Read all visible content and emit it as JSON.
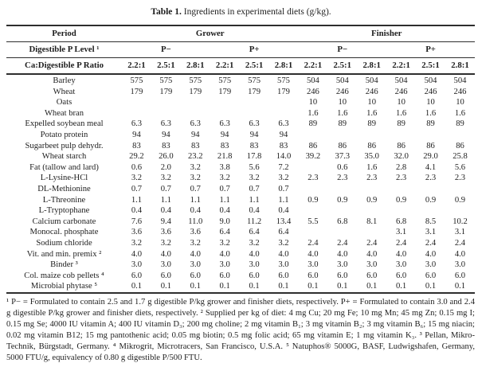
{
  "caption": {
    "label": "Table 1.",
    "text": "Ingredients in experimental diets (g/kg)."
  },
  "table": {
    "corner_labels": {
      "period": "Period",
      "p_level": "Digestible P Level ¹",
      "ratio": "Ca:Digestible P Ratio"
    },
    "period_groups": [
      "Grower",
      "Finisher"
    ],
    "p_level_groups": [
      "P−",
      "P+",
      "P−",
      "P+"
    ],
    "ratio_columns": [
      "2.2:1",
      "2.5:1",
      "2.8:1",
      "2.2:1",
      "2.5:1",
      "2.8:1",
      "2.2:1",
      "2.5:1",
      "2.8:1",
      "2.2:1",
      "2.5:1",
      "2.8:1"
    ],
    "rows": [
      {
        "label": "Barley",
        "values": [
          "575",
          "575",
          "575",
          "575",
          "575",
          "575",
          "504",
          "504",
          "504",
          "504",
          "504",
          "504"
        ]
      },
      {
        "label": "Wheat",
        "values": [
          "179",
          "179",
          "179",
          "179",
          "179",
          "179",
          "246",
          "246",
          "246",
          "246",
          "246",
          "246"
        ]
      },
      {
        "label": "Oats",
        "values": [
          "",
          "",
          "",
          "",
          "",
          "",
          "10",
          "10",
          "10",
          "10",
          "10",
          "10"
        ]
      },
      {
        "label": "Wheat bran",
        "values": [
          "",
          "",
          "",
          "",
          "",
          "",
          "1.6",
          "1.6",
          "1.6",
          "1.6",
          "1.6",
          "1.6"
        ]
      },
      {
        "label": "Expelled soybean meal",
        "values": [
          "6.3",
          "6.3",
          "6.3",
          "6.3",
          "6.3",
          "6.3",
          "89",
          "89",
          "89",
          "89",
          "89",
          "89"
        ]
      },
      {
        "label": "Potato protein",
        "values": [
          "94",
          "94",
          "94",
          "94",
          "94",
          "94",
          "",
          "",
          "",
          "",
          "",
          ""
        ]
      },
      {
        "label": "Sugarbeet pulp dehydr.",
        "values": [
          "83",
          "83",
          "83",
          "83",
          "83",
          "83",
          "86",
          "86",
          "86",
          "86",
          "86",
          "86"
        ]
      },
      {
        "label": "Wheat starch",
        "values": [
          "29.2",
          "26.0",
          "23.2",
          "21.8",
          "17.8",
          "14.0",
          "39.2",
          "37.3",
          "35.0",
          "32.0",
          "29.0",
          "25.8"
        ]
      },
      {
        "label": "Fat (tallow and lard)",
        "values": [
          "0.6",
          "2.0",
          "3.2",
          "3.8",
          "5.6",
          "7.2",
          "",
          "0.6",
          "1.6",
          "2.8",
          "4.1",
          "5.6"
        ]
      },
      {
        "label": "L-Lysine-HCl",
        "values": [
          "3.2",
          "3.2",
          "3.2",
          "3.2",
          "3.2",
          "3.2",
          "2.3",
          "2.3",
          "2.3",
          "2.3",
          "2.3",
          "2.3"
        ]
      },
      {
        "label": "DL-Methionine",
        "values": [
          "0.7",
          "0.7",
          "0.7",
          "0.7",
          "0.7",
          "0.7",
          "",
          "",
          "",
          "",
          "",
          ""
        ]
      },
      {
        "label": "L-Threonine",
        "values": [
          "1.1",
          "1.1",
          "1.1",
          "1.1",
          "1.1",
          "1.1",
          "0.9",
          "0.9",
          "0.9",
          "0.9",
          "0.9",
          "0.9"
        ]
      },
      {
        "label": "L-Tryptophane",
        "values": [
          "0.4",
          "0.4",
          "0.4",
          "0.4",
          "0.4",
          "0.4",
          "",
          "",
          "",
          "",
          "",
          ""
        ]
      },
      {
        "label": "Calcium carbonate",
        "values": [
          "7.6",
          "9.4",
          "11.0",
          "9.0",
          "11.2",
          "13.4",
          "5.5",
          "6.8",
          "8.1",
          "6.8",
          "8.5",
          "10.2"
        ]
      },
      {
        "label": "Monocal. phosphate",
        "values": [
          "3.6",
          "3.6",
          "3.6",
          "6.4",
          "6.4",
          "6.4",
          "",
          "",
          "",
          "3.1",
          "3.1",
          "3.1"
        ]
      },
      {
        "label": "Sodium chloride",
        "values": [
          "3.2",
          "3.2",
          "3.2",
          "3.2",
          "3.2",
          "3.2",
          "2.4",
          "2.4",
          "2.4",
          "2.4",
          "2.4",
          "2.4"
        ]
      },
      {
        "label": "Vit. and min. premix ²",
        "values": [
          "4.0",
          "4.0",
          "4.0",
          "4.0",
          "4.0",
          "4.0",
          "4.0",
          "4.0",
          "4.0",
          "4.0",
          "4.0",
          "4.0"
        ]
      },
      {
        "label": "Binder ³",
        "values": [
          "3.0",
          "3.0",
          "3.0",
          "3.0",
          "3.0",
          "3.0",
          "3.0",
          "3.0",
          "3.0",
          "3.0",
          "3.0",
          "3.0"
        ]
      },
      {
        "label": "Col. maize cob pellets ⁴",
        "values": [
          "6.0",
          "6.0",
          "6.0",
          "6.0",
          "6.0",
          "6.0",
          "6.0",
          "6.0",
          "6.0",
          "6.0",
          "6.0",
          "6.0"
        ]
      },
      {
        "label": "Microbial phytase ⁵",
        "values": [
          "0.1",
          "0.1",
          "0.1",
          "0.1",
          "0.1",
          "0.1",
          "0.1",
          "0.1",
          "0.1",
          "0.1",
          "0.1",
          "0.1"
        ]
      }
    ]
  },
  "footnotes": {
    "text": "¹ P− = Formulated to contain 2.5 and 1.7 g digestible P/kg grower and finisher diets, respectively. P+ = Formulated to contain 3.0 and 2.4 g digestible P/kg grower and finisher diets, respectively. ² Supplied per kg of diet: 4 mg Cu; 20 mg Fe; 10 mg Mn; 45 mg Zn; 0.15 mg I; 0.15 mg Se; 4000 IU vitamin A; 400 IU vitamin D₃; 200 mg choline; 2 mg vitamin B₁; 3 mg vitamin B₂; 3 mg vitamin B₆; 15 mg niacin; 0.02 mg vitamin B12; 15 mg pantothenic acid; 0.05 mg biotin; 0.5 mg folic acid; 65 mg vitamin E; 1 mg vitamin K₃. ³ Pellan, Mikro-Technik, Bürgstadt, Germany. ⁴ Mikrogrit, Microtracers, San Francisco, U.S.A. ⁵ Natuphos® 5000G, BASF, Ludwigshafen, Germany, 5000 FTU/g, equivalency of 0.80 g digestible P/500 FTU."
  }
}
